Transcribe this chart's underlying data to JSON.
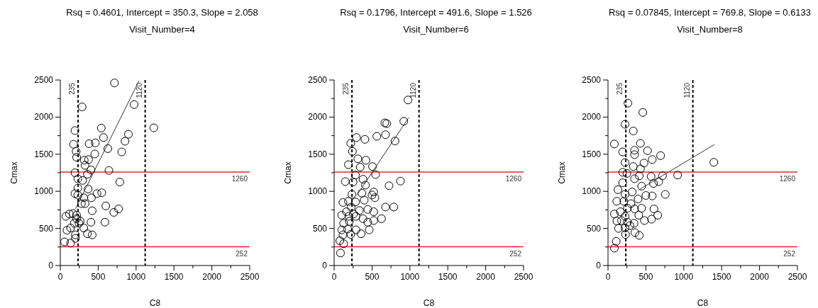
{
  "chart_data": [
    {
      "type": "scatter",
      "title": "Rsq = 0.4601, Intercept = 350.3, Slope = 2.058",
      "subtitle": "Visit_Number=4",
      "xlabel": "C8",
      "ylabel": "Cmax",
      "xlim": [
        0,
        2500
      ],
      "ylim": [
        0,
        2500
      ],
      "xticks": [
        0,
        {
          "value": 250,
          "label": null
        },
        500,
        {
          "value": 750,
          "label": null
        },
        1000,
        {
          "value": 1250,
          "label": null
        },
        1500,
        {
          "value": 1750,
          "label": null
        },
        2000,
        {
          "value": 2250,
          "label": null
        },
        2500
      ],
      "yticks": [
        0,
        {
          "value": 250,
          "label": null
        },
        500,
        {
          "value": 750,
          "label": null
        },
        1000,
        {
          "value": 1250,
          "label": null
        },
        1500,
        {
          "value": 1750,
          "label": null
        },
        2000,
        {
          "value": 2250,
          "label": null
        },
        2500
      ],
      "series": [
        {
          "marker": "circle",
          "color": "#000000",
          "x": [
            715,
            288,
            975,
            1234,
            193,
            541,
            570,
            899,
            854,
            174,
            209,
            380,
            462,
            627,
            215,
            456,
            810,
            316,
            373,
            326,
            405,
            642,
            193,
            231,
            294,
            358,
            785,
            231,
            367,
            193,
            231,
            310,
            411,
            484,
            547,
            278,
            326,
            601,
            421,
            706,
            769,
            73,
            120,
            168,
            215,
            262,
            184,
            88,
            136,
            310,
            405,
            589,
            199,
            358,
            421,
            56,
            136,
            199,
            247,
            215
          ],
          "values": [
            2460,
            2138,
            2169,
            1856,
            1819,
            1853,
            1725,
            1769,
            1675,
            1634,
            1538,
            1641,
            1653,
            1575,
            1459,
            1503,
            1531,
            1419,
            1428,
            1350,
            1288,
            1281,
            1250,
            1169,
            1147,
            1231,
            1125,
            1044,
            1031,
            969,
            950,
            913,
            913,
            969,
            981,
            834,
            834,
            803,
            738,
            716,
            763,
            663,
            694,
            700,
            678,
            600,
            569,
            475,
            506,
            506,
            584,
            584,
            413,
            428,
            413,
            319,
            303,
            366,
            569,
            631
          ]
        },
        {
          "type": "line",
          "color": "#333333",
          "x": [
            200,
            1040
          ],
          "values": [
            762,
            2491
          ]
        }
      ],
      "ref_lines": [
        {
          "axis": "x",
          "value": 235,
          "label": "235",
          "color": "#000000",
          "line_style": "dashed"
        },
        {
          "axis": "x",
          "value": 1120,
          "label": "1120",
          "color": "#000000",
          "line_style": "dashed"
        },
        {
          "axis": "y",
          "value": 1260,
          "label": "1260",
          "color": "#e8262a"
        },
        {
          "axis": "y",
          "value": 252,
          "label": "252",
          "color": "#e8262a"
        }
      ]
    },
    {
      "type": "scatter",
      "title": "Rsq = 0.1796, Intercept = 491.6, Slope = 1.526",
      "subtitle": "Visit_Number=6",
      "xlabel": "C8",
      "ylabel": "Cmax",
      "xlim": [
        0,
        2500
      ],
      "ylim": [
        0,
        2500
      ],
      "xticks": [
        0,
        {
          "value": 250,
          "label": null
        },
        500,
        {
          "value": 750,
          "label": null
        },
        1000,
        {
          "value": 1250,
          "label": null
        },
        1500,
        {
          "value": 1750,
          "label": null
        },
        2000,
        {
          "value": 2250,
          "label": null
        },
        2500
      ],
      "yticks": [
        0,
        {
          "value": 250,
          "label": null
        },
        500,
        {
          "value": 750,
          "label": null
        },
        1000,
        {
          "value": 1250,
          "label": null
        },
        1500,
        {
          "value": 1750,
          "label": null
        },
        2000,
        {
          "value": 2250,
          "label": null
        },
        2500
      ],
      "series": [
        {
          "marker": "circle",
          "color": "#000000",
          "x": [
            975,
            669,
            694,
            919,
            294,
            406,
            563,
            678,
            219,
            241,
            803,
            188,
            313,
            419,
            344,
            506,
            281,
            547,
            147,
            250,
            381,
            413,
            875,
            725,
            234,
            366,
            522,
            500,
            116,
            188,
            281,
            397,
            538,
            678,
            788,
            100,
            163,
            225,
            334,
            444,
            522,
            625,
            125,
            200,
            288,
            381,
            444,
            522,
            100,
            178,
            288,
            356,
            463,
            116,
            219,
            75,
            125,
            84,
            256,
            194
          ],
          "values": [
            2231,
            1922,
            1913,
            1944,
            1725,
            1700,
            1741,
            1763,
            1647,
            1538,
            1678,
            1359,
            1438,
            1419,
            1325,
            1334,
            1219,
            1225,
            1131,
            1125,
            1163,
            1084,
            1138,
            1075,
            959,
            975,
            991,
            950,
            850,
            866,
            856,
            881,
            913,
            788,
            788,
            678,
            725,
            788,
            741,
            756,
            725,
            631,
            569,
            594,
            663,
            631,
            584,
            606,
            481,
            491,
            481,
            428,
            481,
            413,
            419,
            334,
            294,
            169,
            694,
            663
          ]
        },
        {
          "type": "line",
          "color": "#333333",
          "x": [
            300,
            984
          ],
          "values": [
            949,
            1993
          ]
        }
      ],
      "ref_lines": [
        {
          "axis": "x",
          "value": 235,
          "label": "235",
          "color": "#000000",
          "line_style": "dashed"
        },
        {
          "axis": "x",
          "value": 1120,
          "label": "1120",
          "color": "#000000",
          "line_style": "dashed"
        },
        {
          "axis": "y",
          "value": 1260,
          "label": "1260",
          "color": "#e8262a"
        },
        {
          "axis": "y",
          "value": 252,
          "label": "252",
          "color": "#e8262a"
        }
      ]
    },
    {
      "type": "scatter",
      "title": "Rsq = 0.07845, Intercept = 769.8, Slope = 0.6133",
      "subtitle": "Visit_Number=8",
      "xlabel": "C8",
      "ylabel": "Cmax",
      "xlim": [
        0,
        2500
      ],
      "ylim": [
        0,
        2500
      ],
      "xticks": [
        0,
        {
          "value": 250,
          "label": null
        },
        500,
        {
          "value": 750,
          "label": null
        },
        1000,
        {
          "value": 1250,
          "label": null
        },
        1500,
        {
          "value": 1750,
          "label": null
        },
        2000,
        {
          "value": 2250,
          "label": null
        },
        2500
      ],
      "yticks": [
        0,
        {
          "value": 250,
          "label": null
        },
        500,
        {
          "value": 750,
          "label": null
        },
        1000,
        {
          "value": 1250,
          "label": null
        },
        1500,
        {
          "value": 1750,
          "label": null
        },
        2000,
        {
          "value": 2250,
          "label": null
        },
        2500
      ],
      "series": [
        {
          "marker": "circle",
          "color": "#000000",
          "x": [
            263,
            459,
            225,
            334,
            84,
            428,
            194,
            350,
            522,
            350,
            694,
            225,
            475,
            584,
            1397,
            334,
            428,
            194,
            250,
            350,
            413,
            569,
            719,
            919,
            194,
            444,
            600,
            669,
            131,
            225,
            319,
            500,
            584,
            756,
            116,
            209,
            303,
            397,
            256,
            350,
            444,
            606,
            84,
            163,
            225,
            406,
            656,
            575,
            481,
            116,
            178,
            256,
            344,
            138,
            225,
            356,
            413,
            231,
            109,
            84,
            288
          ],
          "values": [
            2188,
            2063,
            1903,
            1813,
            1638,
            1647,
            1531,
            1553,
            1547,
            1494,
            1481,
            1388,
            1381,
            1428,
            1391,
            1334,
            1303,
            1256,
            1241,
            1169,
            1209,
            1200,
            1209,
            1219,
            1116,
            1069,
            1106,
            1131,
            1022,
            959,
            991,
            944,
            938,
            959,
            866,
            866,
            834,
            897,
            772,
            763,
            772,
            763,
            694,
            725,
            663,
            678,
            678,
            625,
            606,
            600,
            606,
            584,
            569,
            500,
            506,
            444,
            406,
            419,
            325,
            234,
            538
          ]
        },
        {
          "type": "line",
          "color": "#333333",
          "x": [
            400,
            1403
          ],
          "values": [
            1015,
            1630
          ]
        }
      ],
      "ref_lines": [
        {
          "axis": "x",
          "value": 235,
          "label": "235",
          "color": "#000000",
          "line_style": "dashed"
        },
        {
          "axis": "x",
          "value": 1120,
          "label": "1120",
          "color": "#000000",
          "line_style": "dashed"
        },
        {
          "axis": "y",
          "value": 1260,
          "label": "1260",
          "color": "#e8262a"
        },
        {
          "axis": "y",
          "value": 252,
          "label": "252",
          "color": "#e8262a"
        }
      ]
    }
  ]
}
